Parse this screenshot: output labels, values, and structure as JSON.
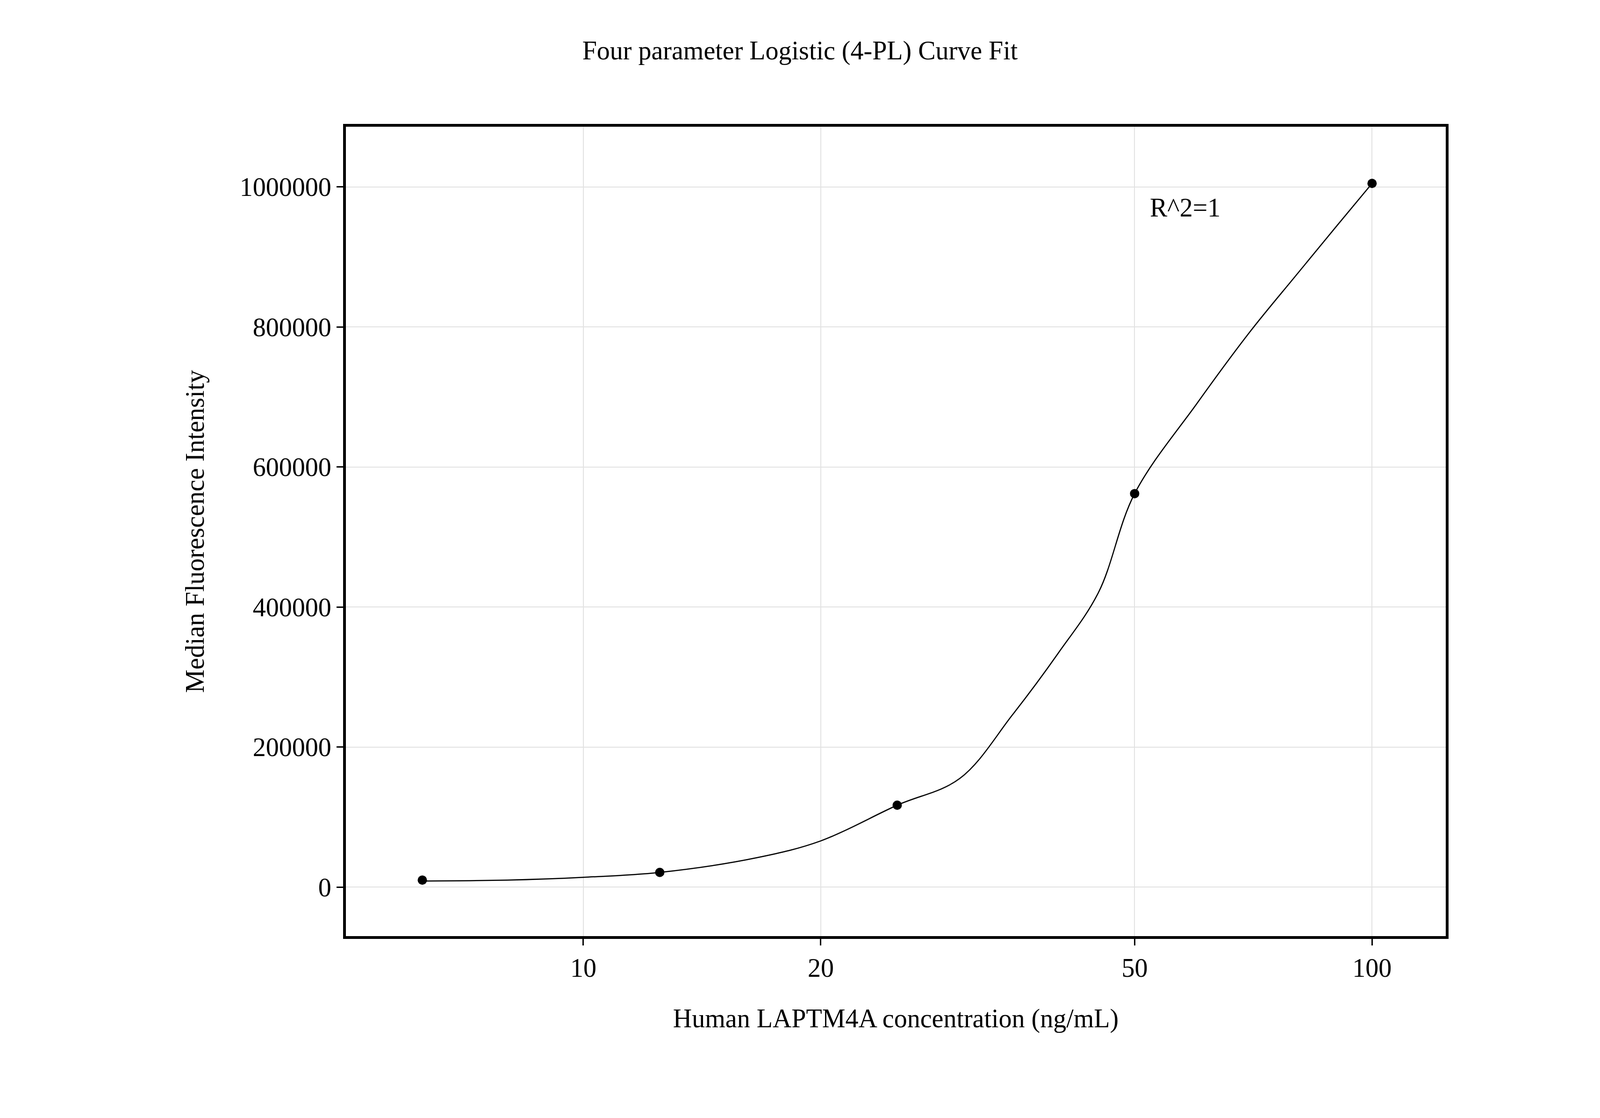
{
  "chart_data": {
    "type": "scatter",
    "title": "Four parameter Logistic (4-PL) Curve Fit",
    "x_label": "Human LAPTM4A concentration (ng/mL)",
    "y_label": "Median Fluorescence Intensity",
    "annotations": [
      "R^2=1"
    ],
    "log": "x",
    "grid": true,
    "xlim": [
      5,
      124
    ],
    "xticks": [
      10,
      20,
      50,
      100
    ],
    "ylim": [
      -70000,
      1086000
    ],
    "yticks": [
      0,
      200000,
      400000,
      600000,
      800000,
      1000000
    ],
    "series": [
      {
        "type": "line",
        "color": "#000000",
        "line_style": "solid",
        "x": [
          6.25,
          8,
          10,
          12.5,
          16.6,
          20,
          25,
          30,
          35,
          40,
          45,
          50,
          60,
          70,
          80,
          90,
          100
        ],
        "values": [
          8700,
          10000,
          14000,
          21000,
          42000,
          66000,
          117000,
          155000,
          246000,
          334000,
          421000,
          562000,
          691000,
          793000,
          873000,
          943000,
          1005000
        ]
      },
      {
        "type": "scatter",
        "color": "#000000",
        "marker": "circle",
        "x": [
          6.25,
          12.5,
          25,
          50,
          100
        ],
        "values": [
          10000,
          21000,
          117000,
          562000,
          1005000
        ]
      }
    ]
  }
}
